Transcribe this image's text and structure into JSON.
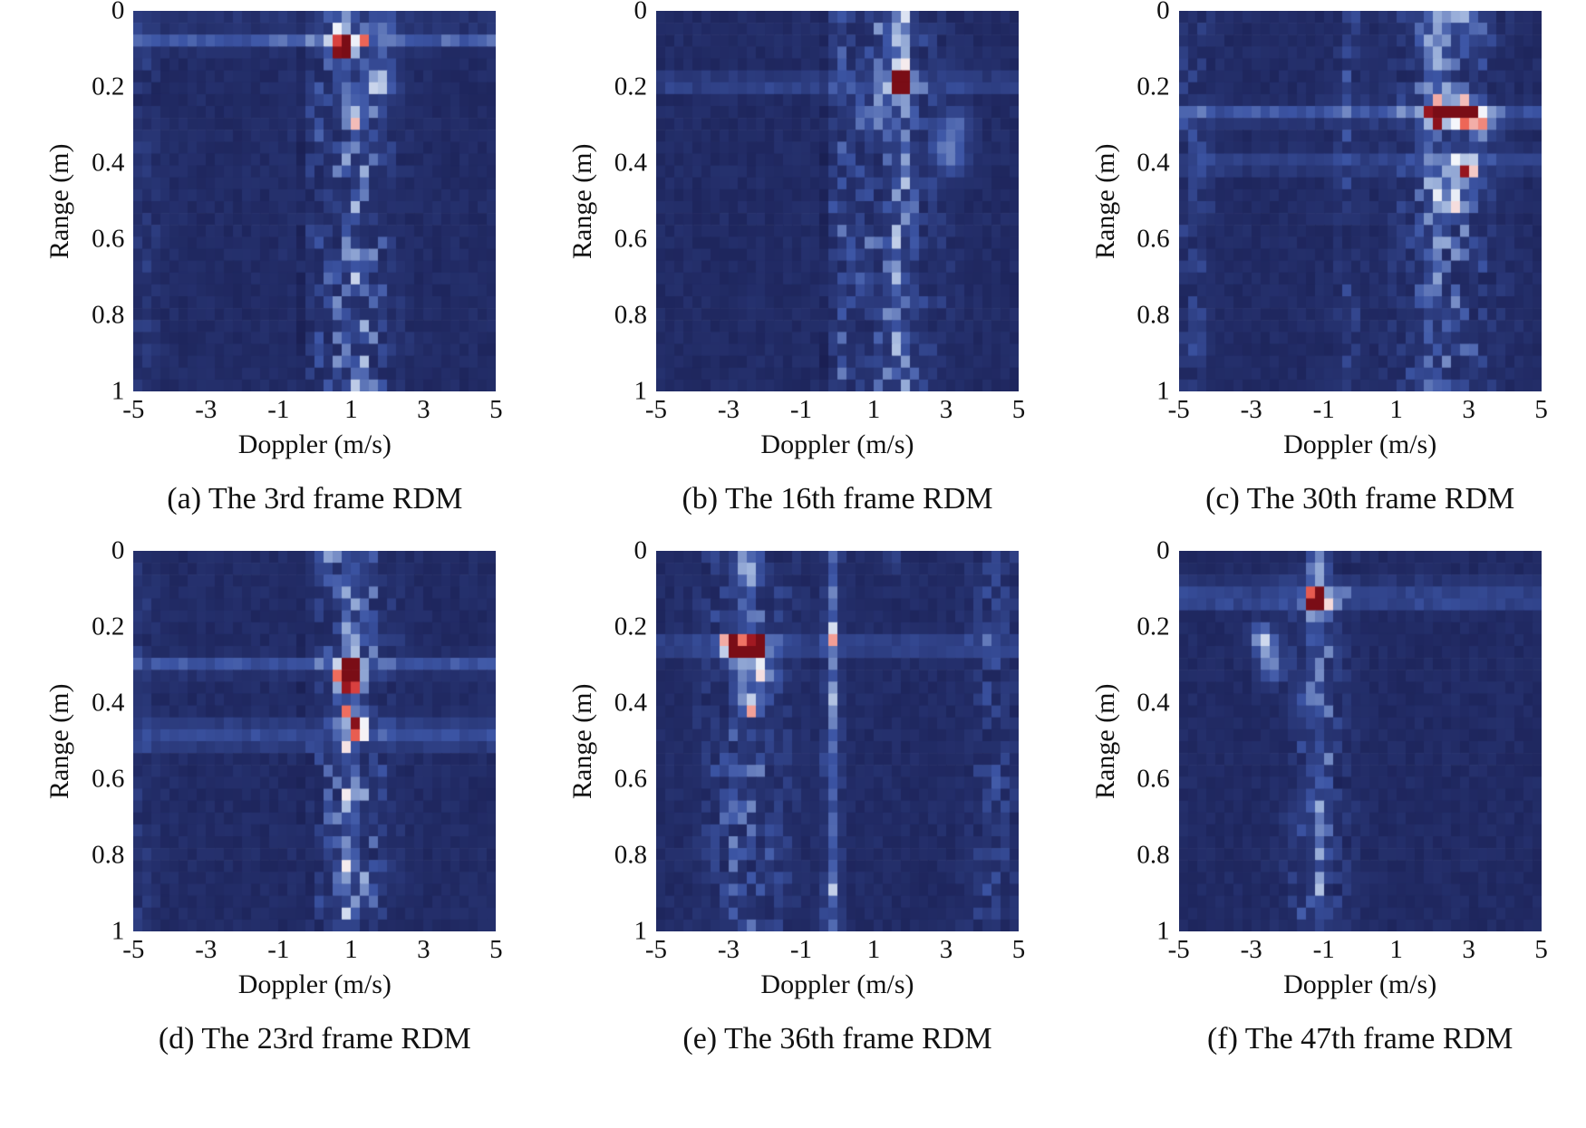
{
  "figure": {
    "ylabel": "Range (m)",
    "xlabel": "Doppler (m/s)",
    "y_ticks": [
      "0",
      "0.2",
      "0.4",
      "0.6",
      "0.8",
      "1"
    ],
    "x_ticks": [
      "-5",
      "-3",
      "-1",
      "1",
      "3",
      "5"
    ],
    "colormap": "dark-blue to white to dark-red (seismic-like)",
    "colormap_stops": [
      [
        0,
        "#181c4e"
      ],
      [
        0.3,
        "#3c55a5"
      ],
      [
        0.55,
        "#9fb4dc"
      ],
      [
        0.7,
        "#f6f7fb"
      ],
      [
        0.8,
        "#ef6a5a"
      ],
      [
        0.9,
        "#c8242c"
      ],
      [
        1,
        "#7a0d16"
      ]
    ]
  },
  "chart_data": [
    {
      "type": "heatmap",
      "title": "(a) The 3rd frame RDM",
      "xlabel": "Doppler (m/s)",
      "ylabel": "Range (m)",
      "x_range": [
        -5,
        5
      ],
      "y_range": [
        0,
        1
      ],
      "x_bins": 40,
      "y_bins": 32,
      "seed": 11,
      "noise_floor": 0.05,
      "noise_jitter": 0.06,
      "peaks": [
        {
          "doppler": 0.85,
          "range": 0.1,
          "amp": 1.15,
          "sd": 0.3,
          "sr": 0.03
        },
        {
          "doppler": 1.8,
          "range": 0.19,
          "amp": 0.62,
          "sd": 0.35,
          "sr": 0.032
        },
        {
          "doppler": 1.1,
          "range": 0.27,
          "amp": 0.35,
          "sd": 0.4,
          "sr": 0.04
        }
      ],
      "h_streaks": [
        {
          "range": 0.075,
          "amp": 0.3,
          "width": 0.022
        },
        {
          "range": 0.0,
          "amp": 0.1,
          "width": 0.02
        }
      ],
      "v_streaks": [
        {
          "doppler": 0.85,
          "amp": 0.35,
          "width": 0.25,
          "decay": 0.1
        },
        {
          "doppler": 2.0,
          "amp": 0.18,
          "width": 0.25,
          "decay": 0.08
        }
      ],
      "noise_columns": [
        {
          "doppler": 1.0,
          "width": 1.0,
          "amp": 0.55
        },
        {
          "doppler": -4.7,
          "width": 0.4,
          "amp": 0.12
        }
      ],
      "dark_lines": [
        {
          "doppler": -0.35,
          "amp": 0.05,
          "width": 0.15
        }
      ]
    },
    {
      "type": "heatmap",
      "title": "(b) The 16th frame RDM",
      "xlabel": "Doppler (m/s)",
      "ylabel": "Range (m)",
      "x_range": [
        -5,
        5
      ],
      "y_range": [
        0,
        1
      ],
      "x_bins": 40,
      "y_bins": 32,
      "seed": 22,
      "noise_floor": 0.05,
      "noise_jitter": 0.06,
      "peaks": [
        {
          "doppler": 1.75,
          "range": 0.19,
          "amp": 1.2,
          "sd": 0.3,
          "sr": 0.032
        },
        {
          "doppler": 3.1,
          "range": 0.38,
          "amp": 0.35,
          "sd": 0.45,
          "sr": 0.05
        },
        {
          "doppler": 3.3,
          "range": 0.3,
          "amp": 0.25,
          "sd": 0.4,
          "sr": 0.04
        }
      ],
      "h_streaks": [
        {
          "range": 0.19,
          "amp": 0.22,
          "width": 0.02
        }
      ],
      "v_streaks": [
        {
          "doppler": 1.75,
          "amp": 0.45,
          "width": 0.28,
          "decay": 0.14
        },
        {
          "doppler": 1.75,
          "amp": 0.12,
          "width": 0.3
        }
      ],
      "noise_columns": [
        {
          "doppler": 1.4,
          "width": 1.2,
          "amp": 0.45
        },
        {
          "doppler": 0.05,
          "width": 0.25,
          "amp": 0.3
        }
      ],
      "dark_lines": [
        {
          "doppler": -0.3,
          "amp": 0.05,
          "width": 0.18
        }
      ]
    },
    {
      "type": "heatmap",
      "title": "(c) The 30th frame RDM",
      "xlabel": "Doppler (m/s)",
      "ylabel": "Range (m)",
      "x_range": [
        -5,
        5
      ],
      "y_range": [
        0,
        1
      ],
      "x_bins": 40,
      "y_bins": 32,
      "seed": 33,
      "noise_floor": 0.05,
      "noise_jitter": 0.06,
      "peaks": [
        {
          "doppler": 2.1,
          "range": 0.27,
          "amp": 1.0,
          "sd": 0.28,
          "sr": 0.03
        },
        {
          "doppler": 2.55,
          "range": 0.265,
          "amp": 0.78,
          "sd": 0.3,
          "sr": 0.032
        },
        {
          "doppler": 3.0,
          "range": 0.27,
          "amp": 1.05,
          "sd": 0.28,
          "sr": 0.03
        },
        {
          "doppler": 3.4,
          "range": 0.3,
          "amp": 0.45,
          "sd": 0.3,
          "sr": 0.035
        },
        {
          "doppler": 2.9,
          "range": 0.42,
          "amp": 0.5,
          "sd": 0.35,
          "sr": 0.04
        },
        {
          "doppler": 2.5,
          "range": 0.5,
          "amp": 0.3,
          "sd": 0.4,
          "sr": 0.05
        }
      ],
      "h_streaks": [
        {
          "range": 0.27,
          "amp": 0.28,
          "width": 0.022
        },
        {
          "range": 0.4,
          "amp": 0.16,
          "width": 0.025
        }
      ],
      "v_streaks": [
        {
          "doppler": 2.2,
          "amp": 0.5,
          "width": 0.3,
          "decay": 0.12
        },
        {
          "doppler": 3.1,
          "amp": 0.3,
          "width": 0.25,
          "decay": 0.1
        },
        {
          "doppler": 2.0,
          "amp": 0.1,
          "width": 0.3
        }
      ],
      "noise_columns": [
        {
          "doppler": 2.4,
          "width": 1.2,
          "amp": 0.45
        },
        {
          "doppler": -0.3,
          "width": 0.3,
          "amp": 0.25
        },
        {
          "doppler": -4.6,
          "width": 0.5,
          "amp": 0.2
        }
      ],
      "dark_lines": []
    },
    {
      "type": "heatmap",
      "title": "(d) The 23rd frame RDM",
      "xlabel": "Doppler (m/s)",
      "ylabel": "Range (m)",
      "x_range": [
        -5,
        5
      ],
      "y_range": [
        0,
        1
      ],
      "x_bins": 40,
      "y_bins": 32,
      "seed": 44,
      "noise_floor": 0.05,
      "noise_jitter": 0.06,
      "peaks": [
        {
          "doppler": 1.0,
          "range": 0.315,
          "amp": 1.15,
          "sd": 0.3,
          "sr": 0.032
        },
        {
          "doppler": 1.1,
          "range": 0.35,
          "amp": 0.6,
          "sd": 0.3,
          "sr": 0.03
        },
        {
          "doppler": 1.0,
          "range": 0.45,
          "amp": 0.3,
          "sd": 0.35,
          "sr": 0.04
        }
      ],
      "h_streaks": [
        {
          "range": 0.3,
          "amp": 0.25,
          "width": 0.022
        },
        {
          "range": 0.47,
          "amp": 0.15,
          "width": 0.03
        },
        {
          "range": 0.5,
          "amp": 0.12,
          "width": 0.025
        }
      ],
      "v_streaks": [
        {
          "doppler": 0.35,
          "amp": 0.3,
          "width": 0.2,
          "decay": 0.05
        },
        {
          "doppler": 1.0,
          "amp": 0.15,
          "width": 0.25
        }
      ],
      "noise_columns": [
        {
          "doppler": 1.05,
          "width": 0.9,
          "amp": 0.55
        },
        {
          "doppler": -4.8,
          "width": 0.4,
          "amp": 0.12
        }
      ],
      "dark_lines": [
        {
          "doppler": -0.25,
          "amp": 0.05,
          "width": 0.18
        }
      ]
    },
    {
      "type": "heatmap",
      "title": "(e) The 36th frame RDM",
      "xlabel": "Doppler (m/s)",
      "ylabel": "Range (m)",
      "x_range": [
        -5,
        5
      ],
      "y_range": [
        0,
        1
      ],
      "x_bins": 40,
      "y_bins": 32,
      "seed": 55,
      "noise_floor": 0.05,
      "noise_jitter": 0.06,
      "peaks": [
        {
          "doppler": -2.9,
          "range": 0.25,
          "amp": 0.95,
          "sd": 0.28,
          "sr": 0.03
        },
        {
          "doppler": -2.2,
          "range": 0.25,
          "amp": 1.15,
          "sd": 0.26,
          "sr": 0.028
        },
        {
          "doppler": -2.55,
          "range": 0.28,
          "amp": 0.6,
          "sd": 0.3,
          "sr": 0.03
        },
        {
          "doppler": -2.4,
          "range": 0.4,
          "amp": 0.55,
          "sd": 0.3,
          "sr": 0.035
        },
        {
          "doppler": -2.1,
          "range": 0.33,
          "amp": 0.4,
          "sd": 0.3,
          "sr": 0.03
        }
      ],
      "h_streaks": [
        {
          "range": 0.25,
          "amp": 0.26,
          "width": 0.02
        }
      ],
      "v_streaks": [
        {
          "doppler": -2.55,
          "amp": 0.45,
          "width": 0.3,
          "decay": 0.12
        },
        {
          "doppler": 1.5,
          "amp": 0.2,
          "width": 0.2,
          "decay": 0.05
        },
        {
          "doppler": -0.15,
          "amp": 0.25,
          "width": 0.16
        }
      ],
      "noise_columns": [
        {
          "doppler": -2.5,
          "width": 1.0,
          "amp": 0.4
        },
        {
          "doppler": -0.15,
          "width": 0.22,
          "amp": 0.35
        },
        {
          "doppler": 4.3,
          "width": 0.6,
          "amp": 0.25
        }
      ],
      "dark_lines": []
    },
    {
      "type": "heatmap",
      "title": "(f) The 47th frame RDM",
      "xlabel": "Doppler (m/s)",
      "ylabel": "Range (m)",
      "x_range": [
        -5,
        5
      ],
      "y_range": [
        0,
        1
      ],
      "x_bins": 40,
      "y_bins": 32,
      "seed": 66,
      "noise_floor": 0.05,
      "noise_jitter": 0.055,
      "peaks": [
        {
          "doppler": -1.2,
          "range": 0.13,
          "amp": 1.1,
          "sd": 0.3,
          "sr": 0.032
        },
        {
          "doppler": -2.6,
          "range": 0.25,
          "amp": 0.45,
          "sd": 0.3,
          "sr": 0.035
        },
        {
          "doppler": -2.45,
          "range": 0.31,
          "amp": 0.35,
          "sd": 0.3,
          "sr": 0.035
        },
        {
          "doppler": -2.75,
          "range": 0.22,
          "amp": 0.3,
          "sd": 0.28,
          "sr": 0.03
        }
      ],
      "h_streaks": [
        {
          "range": 0.13,
          "amp": 0.22,
          "width": 0.022
        },
        {
          "range": 0.095,
          "amp": 0.12,
          "width": 0.02
        }
      ],
      "v_streaks": [
        {
          "doppler": -1.2,
          "amp": 0.35,
          "width": 0.25,
          "decay": 0.1
        },
        {
          "doppler": -1.15,
          "amp": 0.15,
          "width": 0.22
        }
      ],
      "noise_columns": [
        {
          "doppler": -1.15,
          "width": 0.7,
          "amp": 0.4
        },
        {
          "doppler": -0.5,
          "width": 0.3,
          "amp": 0.12
        }
      ],
      "dark_lines": [
        {
          "doppler": -0.55,
          "amp": 0.05,
          "width": 0.2
        }
      ]
    }
  ]
}
